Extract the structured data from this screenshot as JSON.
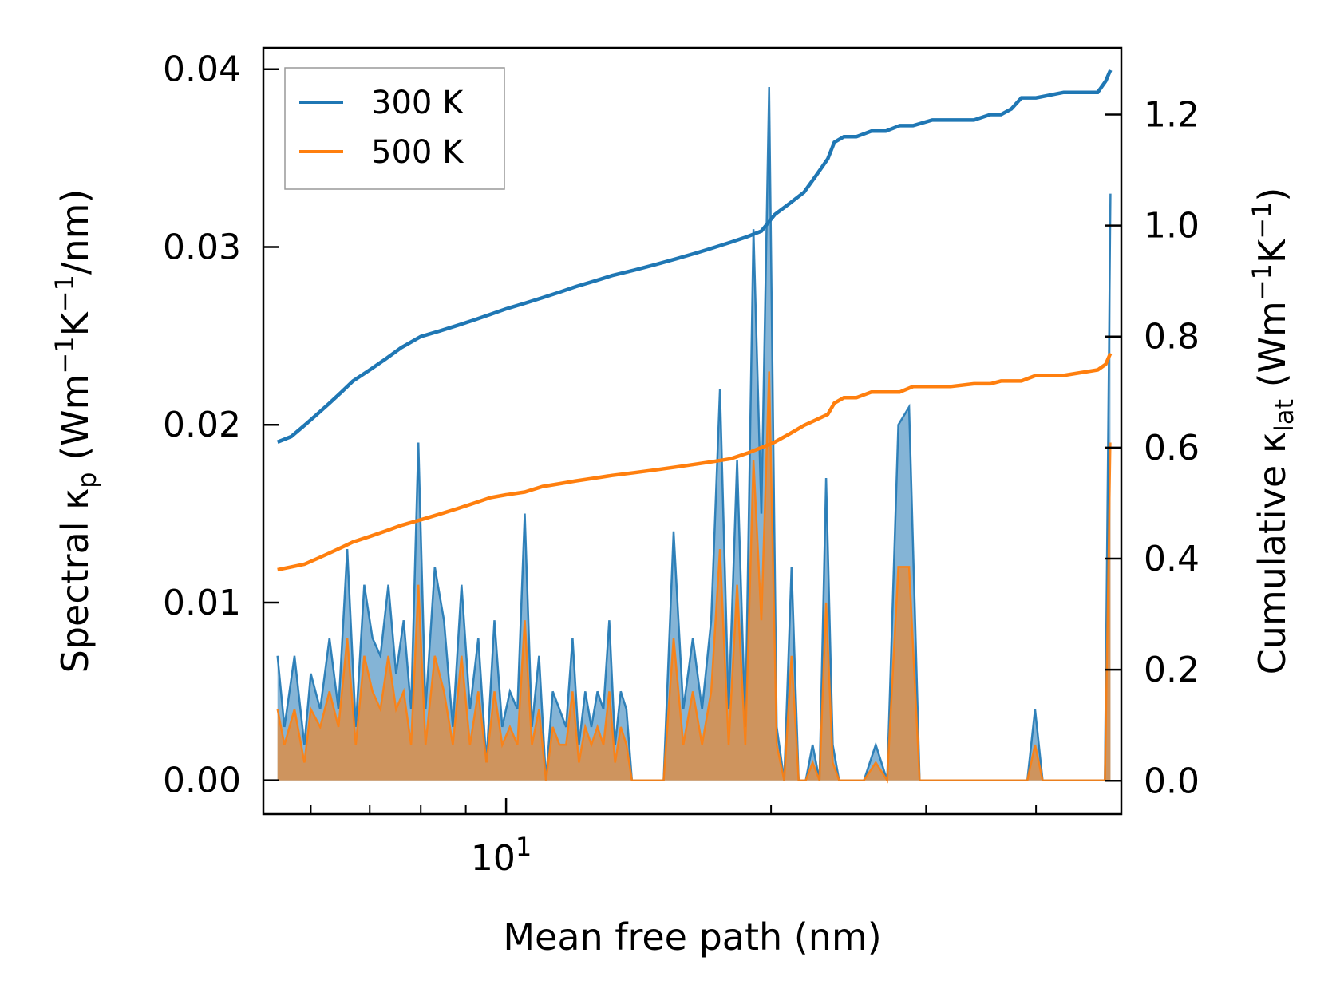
{
  "chart_data": {
    "type": "line",
    "xlabel": "Mean free path (nm)",
    "ylabel_left_parts": [
      "Spectral κ",
      "p",
      " (Wm",
      "−1",
      "K",
      "−1",
      "/nm)"
    ],
    "ylabel_right_parts": [
      "Cumulative κ",
      "lat",
      " (Wm",
      "−1",
      "K",
      "−1",
      ")"
    ],
    "x_scale": "log",
    "xlim": [
      5.3,
      50
    ],
    "x_tick_major": [
      {
        "value": 10,
        "base": "10",
        "exp": "1"
      }
    ],
    "x_tick_minor": [
      6,
      7,
      8,
      9,
      20,
      30,
      40
    ],
    "ylim_left": [
      -0.0019,
      0.0412
    ],
    "ylim_right": [
      -0.06,
      1.32
    ],
    "yticks_left": [
      "0.00",
      "0.01",
      "0.02",
      "0.03",
      "0.04"
    ],
    "yticks_right": [
      "0.0",
      "0.2",
      "0.4",
      "0.6",
      "0.8",
      "1.0",
      "1.2"
    ],
    "legend": {
      "position": "top-left",
      "entries": [
        "300 K",
        "500 K"
      ]
    },
    "colors": {
      "300 K": "#1f77b4",
      "500 K": "#ff7f0e"
    },
    "series": [
      {
        "name": "300 K",
        "axis": "right",
        "kind": "cumulative",
        "x": [
          5.5,
          5.7,
          5.9,
          6.1,
          6.3,
          6.5,
          6.7,
          7.0,
          7.3,
          7.6,
          8.0,
          8.4,
          8.8,
          9.2,
          9.6,
          10.0,
          10.5,
          11.0,
          11.5,
          12.0,
          12.6,
          13.2,
          14.0,
          14.8,
          15.6,
          16.4,
          17.2,
          18.0,
          18.8,
          19.5,
          20.2,
          21.0,
          21.8,
          22.5,
          23.2,
          23.6,
          24.2,
          25.0,
          26.0,
          27.0,
          28.0,
          29.0,
          30.5,
          32.0,
          34.0,
          35.5,
          36.5,
          37.5,
          38.5,
          40.0,
          43.0,
          47.0,
          48.0,
          48.6
        ],
        "y": [
          0.61,
          0.62,
          0.64,
          0.66,
          0.68,
          0.7,
          0.72,
          0.74,
          0.76,
          0.78,
          0.8,
          0.81,
          0.82,
          0.83,
          0.84,
          0.85,
          0.86,
          0.87,
          0.88,
          0.89,
          0.9,
          0.91,
          0.92,
          0.93,
          0.94,
          0.95,
          0.96,
          0.97,
          0.98,
          0.99,
          1.02,
          1.04,
          1.06,
          1.09,
          1.12,
          1.15,
          1.16,
          1.16,
          1.17,
          1.17,
          1.18,
          1.18,
          1.19,
          1.19,
          1.19,
          1.2,
          1.2,
          1.21,
          1.23,
          1.23,
          1.24,
          1.24,
          1.26,
          1.28
        ]
      },
      {
        "name": "500 K",
        "axis": "right",
        "kind": "cumulative",
        "x": [
          5.5,
          5.7,
          5.9,
          6.1,
          6.3,
          6.5,
          6.7,
          7.0,
          7.3,
          7.6,
          8.0,
          8.4,
          8.8,
          9.2,
          9.6,
          10.0,
          10.5,
          11.0,
          11.5,
          12.0,
          12.6,
          13.2,
          14.0,
          14.8,
          15.6,
          16.4,
          17.2,
          18.0,
          18.8,
          19.5,
          20.2,
          21.0,
          21.8,
          22.5,
          23.2,
          23.6,
          24.2,
          25.0,
          26.0,
          27.0,
          28.0,
          29.0,
          30.5,
          32.0,
          34.0,
          35.5,
          36.5,
          37.5,
          38.5,
          40.0,
          43.0,
          47.0,
          48.0,
          48.6
        ],
        "y": [
          0.38,
          0.385,
          0.39,
          0.4,
          0.41,
          0.42,
          0.43,
          0.44,
          0.45,
          0.46,
          0.47,
          0.48,
          0.49,
          0.5,
          0.51,
          0.515,
          0.52,
          0.53,
          0.535,
          0.54,
          0.545,
          0.55,
          0.555,
          0.56,
          0.565,
          0.57,
          0.575,
          0.58,
          0.59,
          0.6,
          0.61,
          0.625,
          0.64,
          0.65,
          0.66,
          0.68,
          0.69,
          0.69,
          0.7,
          0.7,
          0.7,
          0.71,
          0.71,
          0.71,
          0.715,
          0.715,
          0.72,
          0.72,
          0.72,
          0.73,
          0.73,
          0.74,
          0.75,
          0.77
        ]
      },
      {
        "name": "300 K spectral",
        "axis": "left",
        "kind": "spectral",
        "x": [
          5.5,
          5.6,
          5.75,
          5.9,
          6.0,
          6.15,
          6.3,
          6.45,
          6.6,
          6.75,
          6.9,
          7.05,
          7.2,
          7.35,
          7.5,
          7.65,
          7.8,
          7.95,
          8.1,
          8.3,
          8.5,
          8.7,
          8.9,
          9.1,
          9.3,
          9.5,
          9.7,
          9.9,
          10.1,
          10.3,
          10.5,
          10.7,
          10.9,
          11.1,
          11.3,
          11.5,
          11.7,
          11.9,
          12.1,
          12.3,
          12.5,
          12.7,
          12.9,
          13.1,
          13.3,
          13.5,
          13.7,
          13.9,
          14.1,
          14.3,
          14.5,
          14.7,
          14.9,
          15.1,
          15.5,
          15.9,
          16.3,
          16.7,
          17.1,
          17.5,
          17.9,
          18.3,
          18.7,
          19.1,
          19.5,
          19.9,
          20.3,
          20.7,
          21.1,
          21.5,
          21.9,
          22.3,
          22.7,
          23.1,
          23.5,
          23.9,
          24.3,
          24.7,
          25.5,
          26.3,
          27.1,
          27.9,
          28.7,
          29.5,
          30.3,
          31.1,
          31.9,
          32.7,
          33.5,
          34.3,
          35.1,
          35.9,
          36.7,
          37.5,
          38.3,
          39.1,
          39.9,
          40.7,
          41.5,
          42.3,
          43.1,
          43.9,
          44.7,
          45.5,
          46.3,
          47.1,
          47.9,
          48.6
        ],
        "y": [
          0.007,
          0.003,
          0.007,
          0.002,
          0.006,
          0.004,
          0.008,
          0.004,
          0.013,
          0.003,
          0.011,
          0.008,
          0.007,
          0.011,
          0.006,
          0.009,
          0.004,
          0.019,
          0.004,
          0.012,
          0.009,
          0.003,
          0.011,
          0.004,
          0.008,
          0.001,
          0.009,
          0.003,
          0.005,
          0.004,
          0.015,
          0.003,
          0.007,
          0.0,
          0.005,
          0.004,
          0.003,
          0.008,
          0.002,
          0.005,
          0.003,
          0.005,
          0.004,
          0.009,
          0.002,
          0.005,
          0.004,
          0.0,
          0.0,
          0.0,
          0.0,
          0.0,
          0.0,
          0.0,
          0.014,
          0.004,
          0.008,
          0.004,
          0.009,
          0.022,
          0.004,
          0.018,
          0.003,
          0.031,
          0.015,
          0.039,
          0.003,
          0.0,
          0.012,
          0.0,
          0.0,
          0.002,
          0.0,
          0.017,
          0.002,
          0.0,
          0.0,
          0.0,
          0.0,
          0.002,
          0.0,
          0.02,
          0.021,
          0.0,
          0.0,
          0.0,
          0.0,
          0.0,
          0.0,
          0.0,
          0.0,
          0.0,
          0.0,
          0.0,
          0.0,
          0.0,
          0.004,
          0.0,
          0.0,
          0.0,
          0.0,
          0.0,
          0.0,
          0.0,
          0.0,
          0.0,
          0.0,
          0.033
        ]
      },
      {
        "name": "500 K spectral",
        "axis": "left",
        "kind": "spectral",
        "x": [
          5.5,
          5.6,
          5.75,
          5.9,
          6.0,
          6.15,
          6.3,
          6.45,
          6.6,
          6.75,
          6.9,
          7.05,
          7.2,
          7.35,
          7.5,
          7.65,
          7.8,
          7.95,
          8.1,
          8.3,
          8.5,
          8.7,
          8.9,
          9.1,
          9.3,
          9.5,
          9.7,
          9.9,
          10.1,
          10.3,
          10.5,
          10.7,
          10.9,
          11.1,
          11.3,
          11.5,
          11.7,
          11.9,
          12.1,
          12.3,
          12.5,
          12.7,
          12.9,
          13.1,
          13.3,
          13.5,
          13.7,
          13.9,
          14.1,
          14.3,
          14.5,
          14.7,
          14.9,
          15.1,
          15.5,
          15.9,
          16.3,
          16.7,
          17.1,
          17.5,
          17.9,
          18.3,
          18.7,
          19.1,
          19.5,
          19.9,
          20.3,
          20.7,
          21.1,
          21.5,
          21.9,
          22.3,
          22.7,
          23.1,
          23.5,
          23.9,
          24.3,
          24.7,
          25.5,
          26.3,
          27.1,
          27.9,
          28.7,
          29.5,
          30.3,
          31.1,
          31.9,
          32.7,
          33.5,
          34.3,
          35.1,
          35.9,
          36.7,
          37.5,
          38.3,
          39.1,
          39.9,
          40.7,
          41.5,
          42.3,
          43.1,
          43.9,
          44.7,
          45.5,
          46.3,
          47.1,
          47.9,
          48.6
        ],
        "y": [
          0.004,
          0.002,
          0.004,
          0.001,
          0.004,
          0.003,
          0.005,
          0.003,
          0.008,
          0.002,
          0.007,
          0.005,
          0.004,
          0.007,
          0.004,
          0.005,
          0.002,
          0.011,
          0.002,
          0.007,
          0.005,
          0.002,
          0.007,
          0.002,
          0.005,
          0.001,
          0.005,
          0.002,
          0.003,
          0.002,
          0.009,
          0.002,
          0.004,
          0.0,
          0.003,
          0.002,
          0.002,
          0.005,
          0.001,
          0.003,
          0.002,
          0.003,
          0.002,
          0.005,
          0.001,
          0.003,
          0.002,
          0.0,
          0.0,
          0.0,
          0.0,
          0.0,
          0.0,
          0.0,
          0.008,
          0.002,
          0.005,
          0.002,
          0.005,
          0.013,
          0.002,
          0.011,
          0.002,
          0.018,
          0.009,
          0.023,
          0.002,
          0.0,
          0.007,
          0.0,
          0.0,
          0.001,
          0.0,
          0.01,
          0.001,
          0.0,
          0.0,
          0.0,
          0.0,
          0.001,
          0.0,
          0.012,
          0.012,
          0.0,
          0.0,
          0.0,
          0.0,
          0.0,
          0.0,
          0.0,
          0.0,
          0.0,
          0.0,
          0.0,
          0.0,
          0.0,
          0.002,
          0.0,
          0.0,
          0.0,
          0.0,
          0.0,
          0.0,
          0.0,
          0.0,
          0.0,
          0.0,
          0.019
        ]
      }
    ]
  }
}
